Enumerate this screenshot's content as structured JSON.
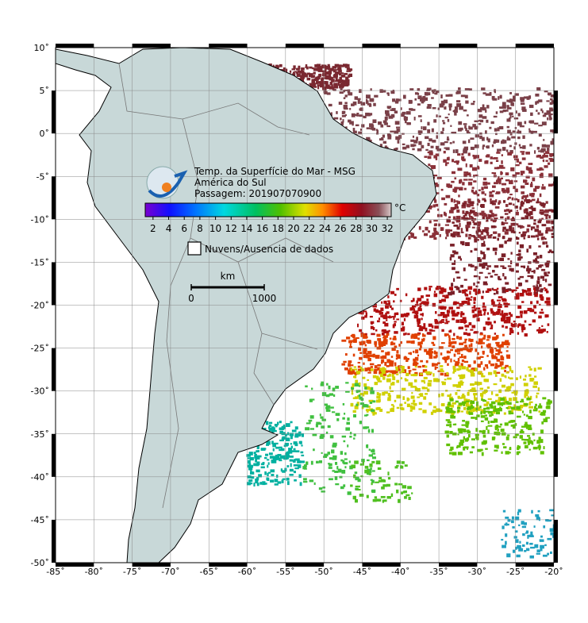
{
  "map": {
    "title": "Temp. da Superfície do Mar - MSG",
    "region": "América do Sul",
    "pass": "Passagem: 201907070900",
    "lonlim": [
      -85,
      -20
    ],
    "latlim": [
      -50,
      10
    ],
    "lonticks": [
      {
        "value": -85,
        "label": "-85˚"
      },
      {
        "value": -80,
        "label": "-80˚"
      },
      {
        "value": -75,
        "label": "-75˚"
      },
      {
        "value": -70,
        "label": "-70˚"
      },
      {
        "value": -65,
        "label": "-65˚"
      },
      {
        "value": -60,
        "label": "-60˚"
      },
      {
        "value": -55,
        "label": "-55˚"
      },
      {
        "value": -50,
        "label": "-50˚"
      },
      {
        "value": -45,
        "label": "-45˚"
      },
      {
        "value": -40,
        "label": "-40˚"
      },
      {
        "value": -35,
        "label": "-35˚"
      },
      {
        "value": -30,
        "label": "-30˚"
      },
      {
        "value": -25,
        "label": "-25˚"
      },
      {
        "value": -20,
        "label": "-20˚"
      }
    ],
    "latticks": [
      {
        "value": 10,
        "label": "10˚"
      },
      {
        "value": 5,
        "label": "5˚"
      },
      {
        "value": 0,
        "label": "0˚"
      },
      {
        "value": -5,
        "label": "-5˚"
      },
      {
        "value": -10,
        "label": "-10˚"
      },
      {
        "value": -15,
        "label": "-15˚"
      },
      {
        "value": -20,
        "label": "-20˚"
      },
      {
        "value": -25,
        "label": "-25˚"
      },
      {
        "value": -30,
        "label": "-30˚"
      },
      {
        "value": -35,
        "label": "-35˚"
      },
      {
        "value": -40,
        "label": "-40˚"
      },
      {
        "value": -45,
        "label": "-45˚"
      },
      {
        "value": -50,
        "label": "-50˚"
      }
    ],
    "grid": true,
    "colorbar": {
      "range": [
        1,
        32.5
      ],
      "ticks": [
        2,
        4,
        6,
        8,
        10,
        12,
        14,
        16,
        18,
        20,
        22,
        24,
        26,
        28,
        30,
        32
      ],
      "unit": "°C"
    },
    "legend": "Nuvens/Ausencia de dados",
    "scale": {
      "unit": "km",
      "ticks": [
        0,
        1000
      ]
    }
  }
}
